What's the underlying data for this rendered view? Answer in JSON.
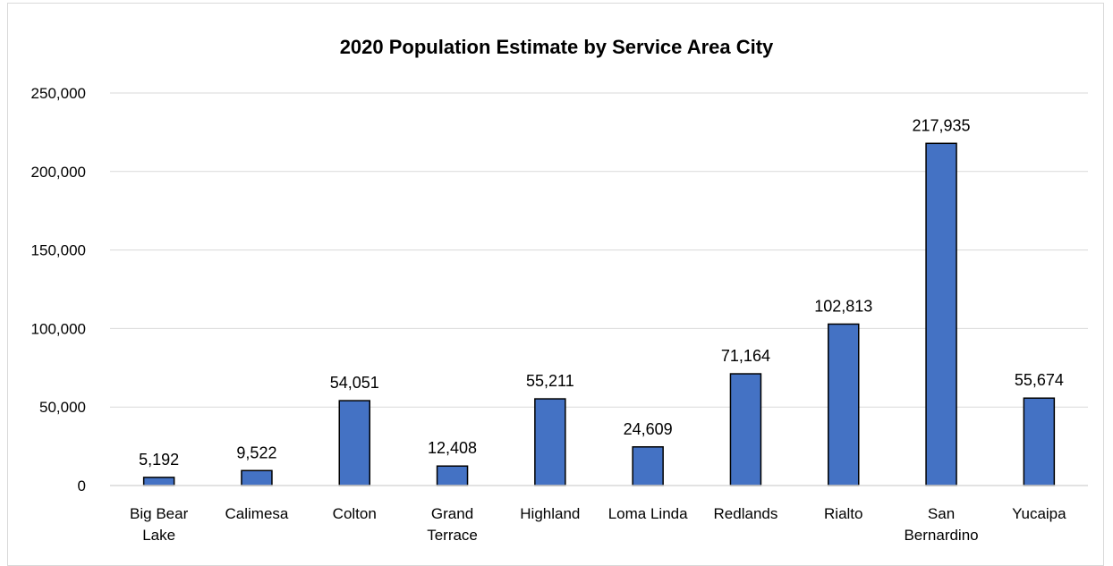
{
  "chart_data": {
    "type": "bar",
    "title": "2020 Population Estimate by Service Area City",
    "categories": [
      "Big Bear\nLake",
      "Calimesa",
      "Colton",
      "Grand\nTerrace",
      "Highland",
      "Loma Linda",
      "Redlands",
      "Rialto",
      "San\nBernardino",
      "Yucaipa"
    ],
    "values": [
      5192,
      9522,
      54051,
      12408,
      55211,
      24609,
      71164,
      102813,
      217935,
      55674
    ],
    "data_labels": [
      "5,192",
      "9,522",
      "54,051",
      "12,408",
      "55,211",
      "24,609",
      "71,164",
      "102,813",
      "217,935",
      "55,674"
    ],
    "yticks": [
      "0",
      "50,000",
      "100,000",
      "150,000",
      "200,000",
      "250,000"
    ],
    "ylim": [
      0,
      250000
    ],
    "grid": true,
    "legend": "none",
    "bar_color": "#4472c4",
    "bar_outline": "#000000",
    "grid_color": "#d9d9d9"
  }
}
